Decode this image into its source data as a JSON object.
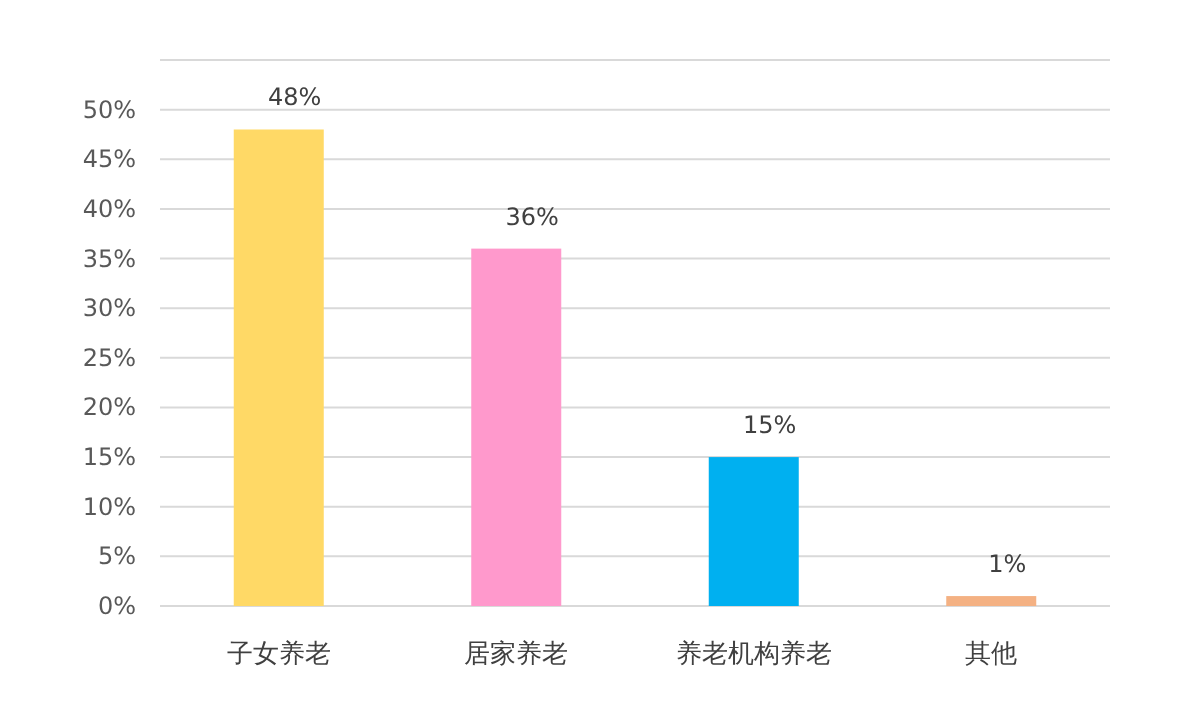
{
  "chart_data": {
    "type": "bar",
    "categories": [
      "子女养老",
      "居家养老",
      "养老机构养老",
      "其他"
    ],
    "values": [
      48,
      36,
      15,
      1
    ],
    "colors": [
      "#ffd966",
      "#ff99cc",
      "#00b0f0",
      "#f4b183"
    ],
    "value_labels": [
      "48%",
      "36%",
      "15%",
      "1%"
    ],
    "ylim": [
      0,
      55
    ],
    "yticks": [
      {
        "value": 0,
        "label": "0%"
      },
      {
        "value": 5,
        "label": "5%"
      },
      {
        "value": 10,
        "label": "10%"
      },
      {
        "value": 15,
        "label": "15%"
      },
      {
        "value": 20,
        "label": "20%"
      },
      {
        "value": 25,
        "label": "25%"
      },
      {
        "value": 30,
        "label": "30%"
      },
      {
        "value": 35,
        "label": "35%"
      },
      {
        "value": 40,
        "label": "40%"
      },
      {
        "value": 45,
        "label": "45%"
      },
      {
        "value": 50,
        "label": "50%"
      },
      {
        "value": 55,
        "label": null
      }
    ],
    "grid": "y"
  }
}
